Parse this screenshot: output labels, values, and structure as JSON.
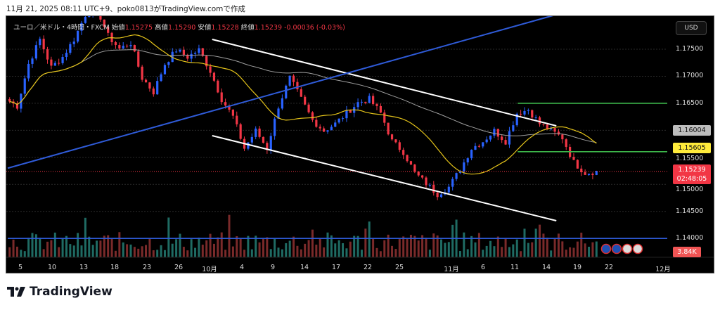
{
  "caption": "11月 21, 2025 08:11 UTC+9、poko0813がTradingView.comで作成",
  "legend": {
    "symbol": "ユーロ／米ドル・4時間・FXCM",
    "open_label": "始値",
    "open": "1.15275",
    "high_label": "高値",
    "high": "1.15290",
    "low_label": "安値",
    "low": "1.15228",
    "close_label": "終値",
    "close": "1.15239",
    "change": "-0.00036 (-0.03%)"
  },
  "currency_button": "USD",
  "tags": {
    "ma_long": "1.16004",
    "level": "1.15605",
    "last_price": "1.15239",
    "countdown": "02:48:05",
    "volume": "3.84K"
  },
  "logo_text": "TradingView",
  "colors": {
    "up": "#2962ff",
    "down": "#f23645",
    "ma_short": "#e5c41a",
    "ma_long": "#9e9e9e",
    "support": "#3cb54a",
    "trend": "#2f5bd8",
    "channel": "#ffffff"
  },
  "events": [
    "eu-flag-icon",
    "eu-flag-icon",
    "us-flag-icon",
    "us-flag-icon"
  ],
  "chart_data": {
    "type": "candlestick",
    "title": "EUR/USD 4H FXCM",
    "x_tick_labels": [
      "5",
      "10",
      "13",
      "18",
      "23",
      "26",
      "10月",
      "4",
      "9",
      "14",
      "17",
      "22",
      "25",
      "11月",
      "6",
      "11",
      "14",
      "19",
      "22",
      "12月"
    ],
    "y_tick_labels": [
      "1.17500",
      "1.17000",
      "1.16500",
      "1.15500",
      "1.15000",
      "1.14500",
      "1.14000"
    ],
    "ylim": [
      1.1355,
      1.1835
    ],
    "close_path": [
      1.16577,
      1.16447,
      1.17227,
      1.17682,
      1.17162,
      1.17357,
      1.17682,
      1.18137,
      1.18267,
      1.17747,
      1.17507,
      1.17617,
      1.16967,
      1.16707,
      1.17227,
      1.17487,
      1.17357,
      1.17487,
      1.17097,
      1.16577,
      1.16252,
      1.15667,
      1.15992,
      1.15667,
      1.16447,
      1.16967,
      1.16577,
      1.16187,
      1.15992,
      1.16122,
      1.16317,
      1.16512,
      1.16577,
      1.16317,
      1.15797,
      1.15602,
      1.15212,
      1.15017,
      1.14822,
      1.14952,
      1.15277,
      1.15667,
      1.15797,
      1.15992,
      1.15797,
      1.16317,
      1.16382,
      1.16122,
      1.15992,
      1.15862,
      1.15407,
      1.15212,
      1.15239
    ],
    "moving_averages": [
      {
        "name": "MA short",
        "period": 20
      },
      {
        "name": "MA long",
        "period": 75,
        "last": 1.16004
      }
    ],
    "trendlines": [
      {
        "name": "channel-upper",
        "from": [
          18,
          1.17682
        ],
        "to": [
          48.3,
          1.16083
        ]
      },
      {
        "name": "channel-lower",
        "from": [
          18,
          1.15901
        ],
        "to": [
          48.3,
          1.14328
        ]
      },
      {
        "name": "uptrend",
        "from": [
          0,
          1.153
        ],
        "to": [
          48.3,
          1.1814
        ]
      }
    ],
    "horizontal_levels": [
      {
        "name": "resistance",
        "price": 1.165,
        "from": 44.9
      },
      {
        "name": "support",
        "price": 1.15605,
        "from": 44.9
      },
      {
        "name": "major-support",
        "price": 1.14,
        "from": 0
      }
    ]
  }
}
